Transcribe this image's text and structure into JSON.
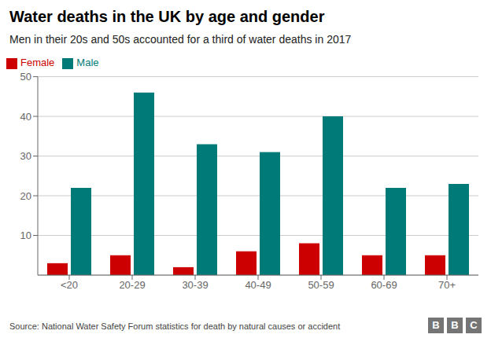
{
  "chart_data": {
    "type": "bar",
    "title": "Water deaths in the UK by age and gender",
    "subtitle": "Men in their 20s and 50s accounted for a third of water deaths in 2017",
    "source": "Source: National Water Safety Forum statistics for death by natural causes or accident",
    "annotations": [
      "B",
      "B",
      "C"
    ],
    "categories": [
      "<20",
      "20-29",
      "30-39",
      "40-49",
      "50-59",
      "60-69",
      "70+"
    ],
    "series": [
      {
        "name": "Female",
        "color": "#cc0000",
        "values": [
          3,
          5,
          2,
          6,
          8,
          5,
          5
        ]
      },
      {
        "name": "Male",
        "color": "#007a78",
        "values": [
          22,
          46,
          33,
          31,
          40,
          22,
          23
        ]
      }
    ],
    "ylim": [
      0,
      50
    ],
    "yticks": [
      10,
      20,
      30,
      40,
      50
    ],
    "grid": true,
    "legend": "top-left"
  }
}
